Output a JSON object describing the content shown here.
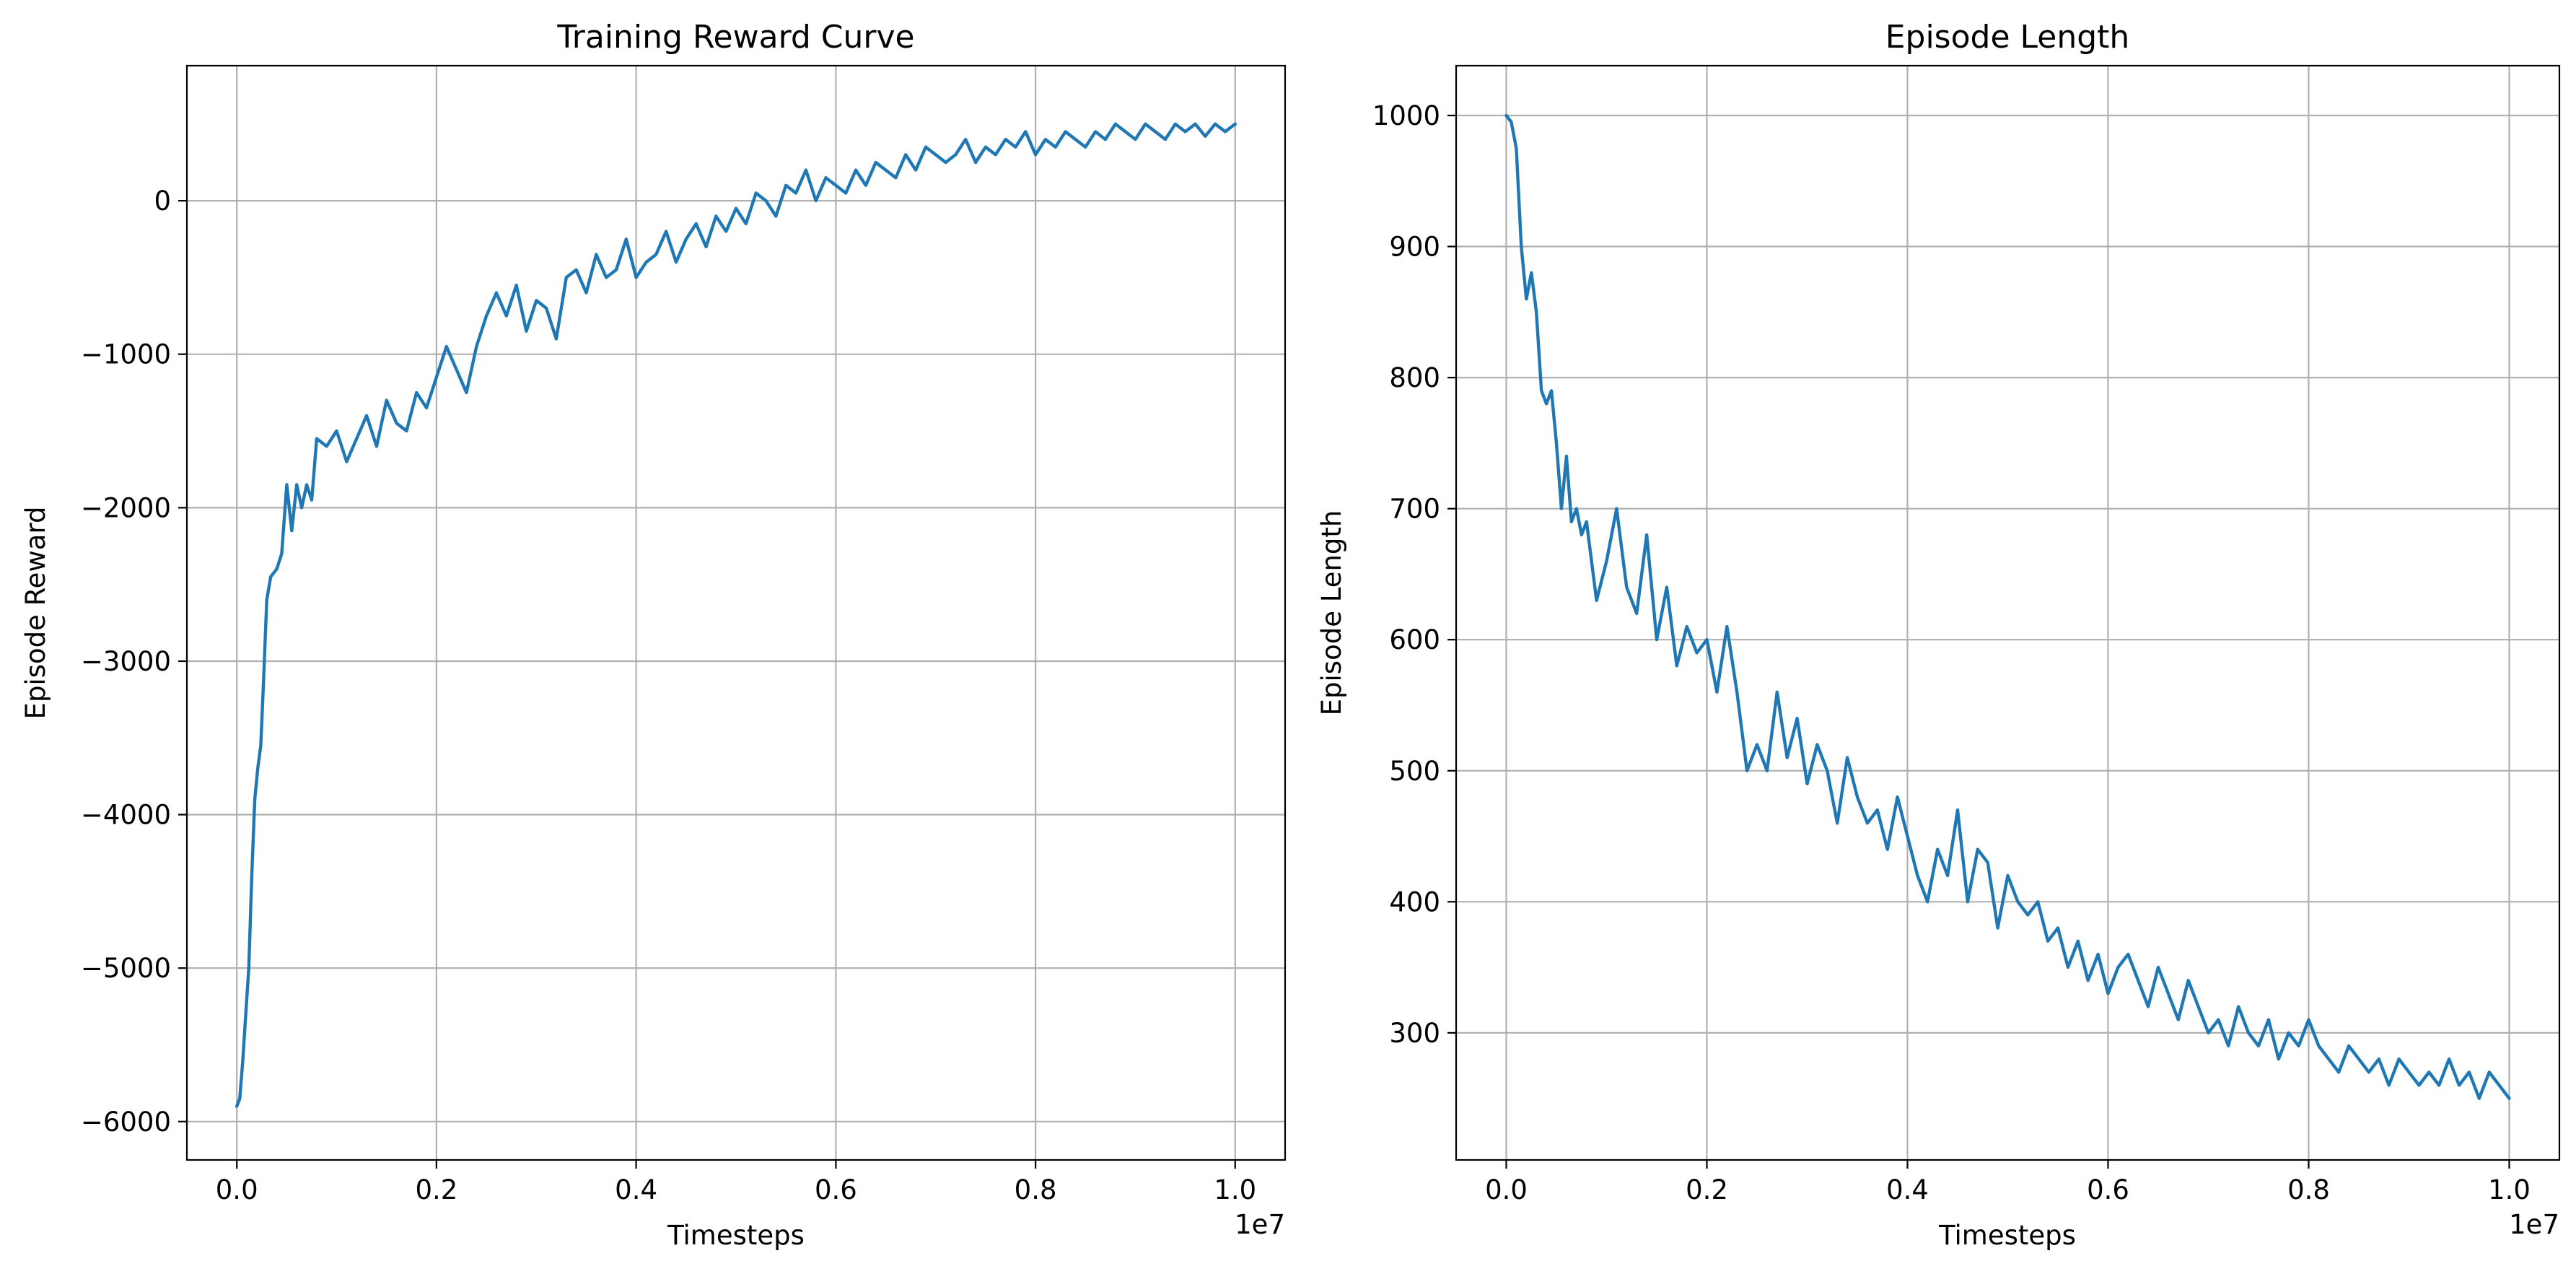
{
  "figure": {
    "background": "#ffffff",
    "series_color": "#1f77b4",
    "grid_color": "#b0b0b0"
  },
  "chart_data": [
    {
      "type": "line",
      "title": "Training Reward Curve",
      "xlabel": "Timesteps",
      "ylabel": "Episode Reward",
      "x_offset_label": "1e7",
      "x_scale": 10000000,
      "xlim": [
        -0.05,
        1.05
      ],
      "ylim": [
        -6250,
        880
      ],
      "xticks": [
        0.0,
        0.2,
        0.4,
        0.6,
        0.8,
        1.0
      ],
      "xtick_labels": [
        "0.0",
        "0.2",
        "0.4",
        "0.6",
        "0.8",
        "1.0"
      ],
      "yticks": [
        -6000,
        -5000,
        -4000,
        -3000,
        -2000,
        -1000,
        0
      ],
      "ytick_labels": [
        "−6000",
        "−5000",
        "−4000",
        "−3000",
        "−2000",
        "−1000",
        "0"
      ],
      "grid": true,
      "legend": "none",
      "series": [
        {
          "x": [
            0.0,
            0.003,
            0.006,
            0.009,
            0.012,
            0.015,
            0.018,
            0.021,
            0.024,
            0.027,
            0.03,
            0.034,
            0.04,
            0.045,
            0.05,
            0.055,
            0.06,
            0.065,
            0.07,
            0.075,
            0.08,
            0.09,
            0.1,
            0.11,
            0.12,
            0.13,
            0.14,
            0.15,
            0.16,
            0.17,
            0.18,
            0.19,
            0.2,
            0.21,
            0.22,
            0.23,
            0.24,
            0.25,
            0.26,
            0.27,
            0.28,
            0.29,
            0.3,
            0.31,
            0.32,
            0.33,
            0.34,
            0.35,
            0.36,
            0.37,
            0.38,
            0.39,
            0.4,
            0.41,
            0.42,
            0.43,
            0.44,
            0.45,
            0.46,
            0.47,
            0.48,
            0.49,
            0.5,
            0.51,
            0.52,
            0.53,
            0.54,
            0.55,
            0.56,
            0.57,
            0.58,
            0.59,
            0.6,
            0.61,
            0.62,
            0.63,
            0.64,
            0.65,
            0.66,
            0.67,
            0.68,
            0.69,
            0.7,
            0.71,
            0.72,
            0.73,
            0.74,
            0.75,
            0.76,
            0.77,
            0.78,
            0.79,
            0.8,
            0.81,
            0.82,
            0.83,
            0.84,
            0.85,
            0.86,
            0.87,
            0.88,
            0.89,
            0.9,
            0.91,
            0.92,
            0.93,
            0.94,
            0.95,
            0.96,
            0.97,
            0.98,
            0.99,
            1.0
          ],
          "values": [
            -5900,
            -5850,
            -5600,
            -5300,
            -5000,
            -4400,
            -3900,
            -3700,
            -3550,
            -3100,
            -2600,
            -2450,
            -2400,
            -2300,
            -1850,
            -2150,
            -1850,
            -2000,
            -1850,
            -1950,
            -1550,
            -1600,
            -1500,
            -1700,
            -1550,
            -1400,
            -1600,
            -1300,
            -1450,
            -1500,
            -1250,
            -1350,
            -1150,
            -950,
            -1100,
            -1250,
            -950,
            -750,
            -600,
            -750,
            -550,
            -850,
            -650,
            -700,
            -900,
            -500,
            -450,
            -600,
            -350,
            -500,
            -450,
            -250,
            -500,
            -400,
            -350,
            -200,
            -400,
            -250,
            -150,
            -300,
            -100,
            -200,
            -50,
            -150,
            50,
            0,
            -100,
            100,
            50,
            200,
            0,
            150,
            100,
            50,
            200,
            100,
            250,
            200,
            150,
            300,
            200,
            350,
            300,
            250,
            300,
            400,
            250,
            350,
            300,
            400,
            350,
            450,
            300,
            400,
            350,
            450,
            400,
            350,
            450,
            400,
            500,
            450,
            400,
            500,
            450,
            400,
            500,
            450,
            500,
            420,
            500,
            450,
            500
          ],
          "color": "#1f77b4"
        }
      ]
    },
    {
      "type": "line",
      "title": "Episode Length",
      "xlabel": "Timesteps",
      "ylabel": "Episode Length",
      "x_offset_label": "1e7",
      "x_scale": 10000000,
      "xlim": [
        -0.05,
        1.05
      ],
      "ylim": [
        203,
        1038
      ],
      "xticks": [
        0.0,
        0.2,
        0.4,
        0.6,
        0.8,
        1.0
      ],
      "xtick_labels": [
        "0.0",
        "0.2",
        "0.4",
        "0.6",
        "0.8",
        "1.0"
      ],
      "yticks": [
        300,
        400,
        500,
        600,
        700,
        800,
        900,
        1000
      ],
      "ytick_labels": [
        "300",
        "400",
        "500",
        "600",
        "700",
        "800",
        "900",
        "1000"
      ],
      "grid": true,
      "legend": "none",
      "series": [
        {
          "x": [
            0.0,
            0.005,
            0.01,
            0.015,
            0.02,
            0.025,
            0.03,
            0.035,
            0.04,
            0.045,
            0.05,
            0.055,
            0.06,
            0.065,
            0.07,
            0.075,
            0.08,
            0.09,
            0.1,
            0.11,
            0.12,
            0.13,
            0.14,
            0.15,
            0.16,
            0.17,
            0.18,
            0.19,
            0.2,
            0.21,
            0.22,
            0.23,
            0.24,
            0.25,
            0.26,
            0.27,
            0.28,
            0.29,
            0.3,
            0.31,
            0.32,
            0.33,
            0.34,
            0.35,
            0.36,
            0.37,
            0.38,
            0.39,
            0.4,
            0.41,
            0.42,
            0.43,
            0.44,
            0.45,
            0.46,
            0.47,
            0.48,
            0.49,
            0.5,
            0.51,
            0.52,
            0.53,
            0.54,
            0.55,
            0.56,
            0.57,
            0.58,
            0.59,
            0.6,
            0.61,
            0.62,
            0.63,
            0.64,
            0.65,
            0.66,
            0.67,
            0.68,
            0.69,
            0.7,
            0.71,
            0.72,
            0.73,
            0.74,
            0.75,
            0.76,
            0.77,
            0.78,
            0.79,
            0.8,
            0.81,
            0.82,
            0.83,
            0.84,
            0.85,
            0.86,
            0.87,
            0.88,
            0.89,
            0.9,
            0.91,
            0.92,
            0.93,
            0.94,
            0.95,
            0.96,
            0.97,
            0.98,
            0.99,
            1.0
          ],
          "values": [
            1000,
            995,
            975,
            900,
            860,
            880,
            850,
            790,
            780,
            790,
            750,
            700,
            740,
            690,
            700,
            680,
            690,
            630,
            660,
            700,
            640,
            620,
            680,
            600,
            640,
            580,
            610,
            590,
            600,
            560,
            610,
            560,
            500,
            520,
            500,
            560,
            510,
            540,
            490,
            520,
            500,
            460,
            510,
            480,
            460,
            470,
            440,
            480,
            450,
            420,
            400,
            440,
            420,
            470,
            400,
            440,
            430,
            380,
            420,
            400,
            390,
            400,
            370,
            380,
            350,
            370,
            340,
            360,
            330,
            350,
            360,
            340,
            320,
            350,
            330,
            310,
            340,
            320,
            300,
            310,
            290,
            320,
            300,
            290,
            310,
            280,
            300,
            290,
            310,
            290,
            280,
            270,
            290,
            280,
            270,
            280,
            260,
            280,
            270,
            260,
            270,
            260,
            280,
            260,
            270,
            250,
            270,
            260,
            250
          ],
          "color": "#1f77b4"
        }
      ]
    }
  ]
}
